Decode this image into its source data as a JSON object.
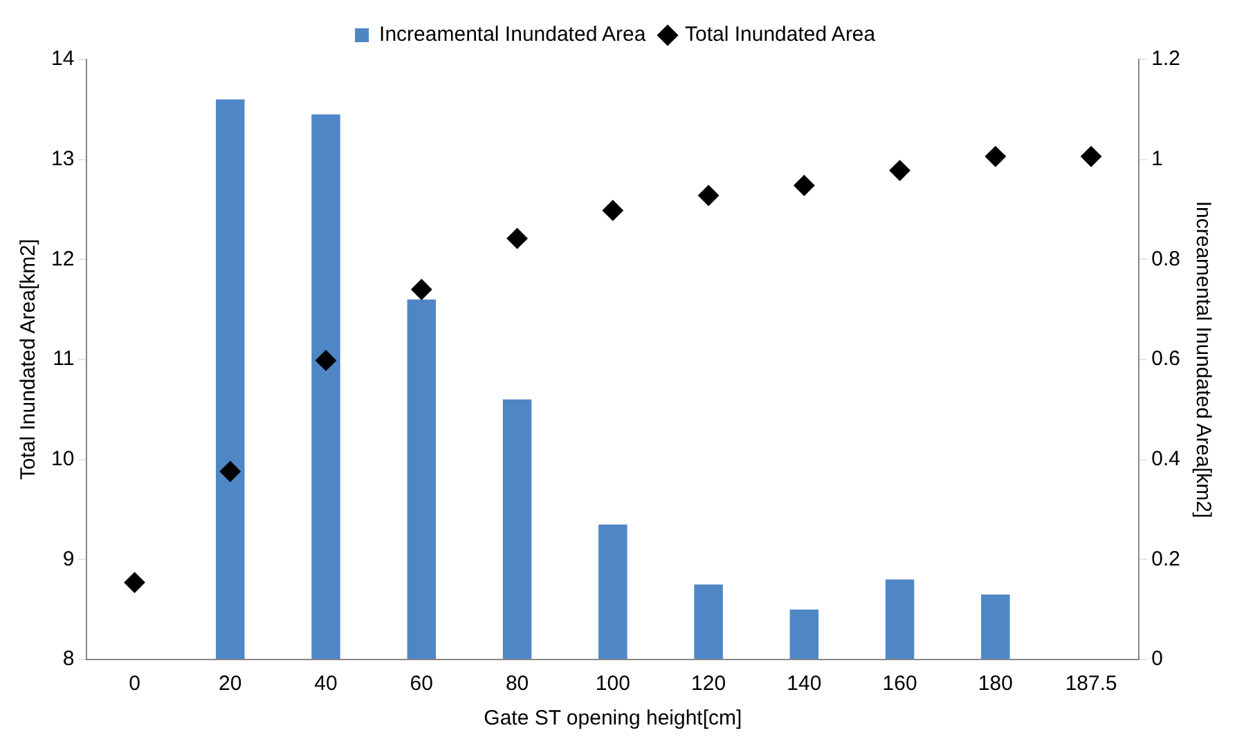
{
  "chart_data": {
    "type": "bar",
    "xlabel": "Gate ST opening height[cm]",
    "ylabel": "Total Inundated Area[km2]",
    "y2label": "Increamental Inundated Area[km2]",
    "categories": [
      "0",
      "20",
      "40",
      "60",
      "80",
      "100",
      "120",
      "140",
      "160",
      "180",
      "187.5"
    ],
    "series": [
      {
        "name": "Increamental Inundated Area",
        "axis": "y2",
        "color": "#4f86c6",
        "values": [
          null,
          1.12,
          1.09,
          0.72,
          0.52,
          0.27,
          0.15,
          0.1,
          0.16,
          0.13,
          null
        ]
      },
      {
        "name": "Total Inundated Area",
        "type": "scatter",
        "axis": "y",
        "color": "#000000",
        "marker": "diamond",
        "values": [
          8.77,
          9.88,
          10.99,
          11.7,
          12.21,
          12.49,
          12.64,
          12.74,
          12.89,
          13.03,
          13.03
        ]
      }
    ],
    "ylim": [
      8,
      14
    ],
    "yticks": [
      8,
      9,
      10,
      11,
      12,
      13,
      14
    ],
    "y2lim": [
      0,
      1.2
    ],
    "y2ticks": [
      0,
      0.2,
      0.4,
      0.6,
      0.8,
      1,
      1.2
    ],
    "legend": "top",
    "grid": false
  }
}
